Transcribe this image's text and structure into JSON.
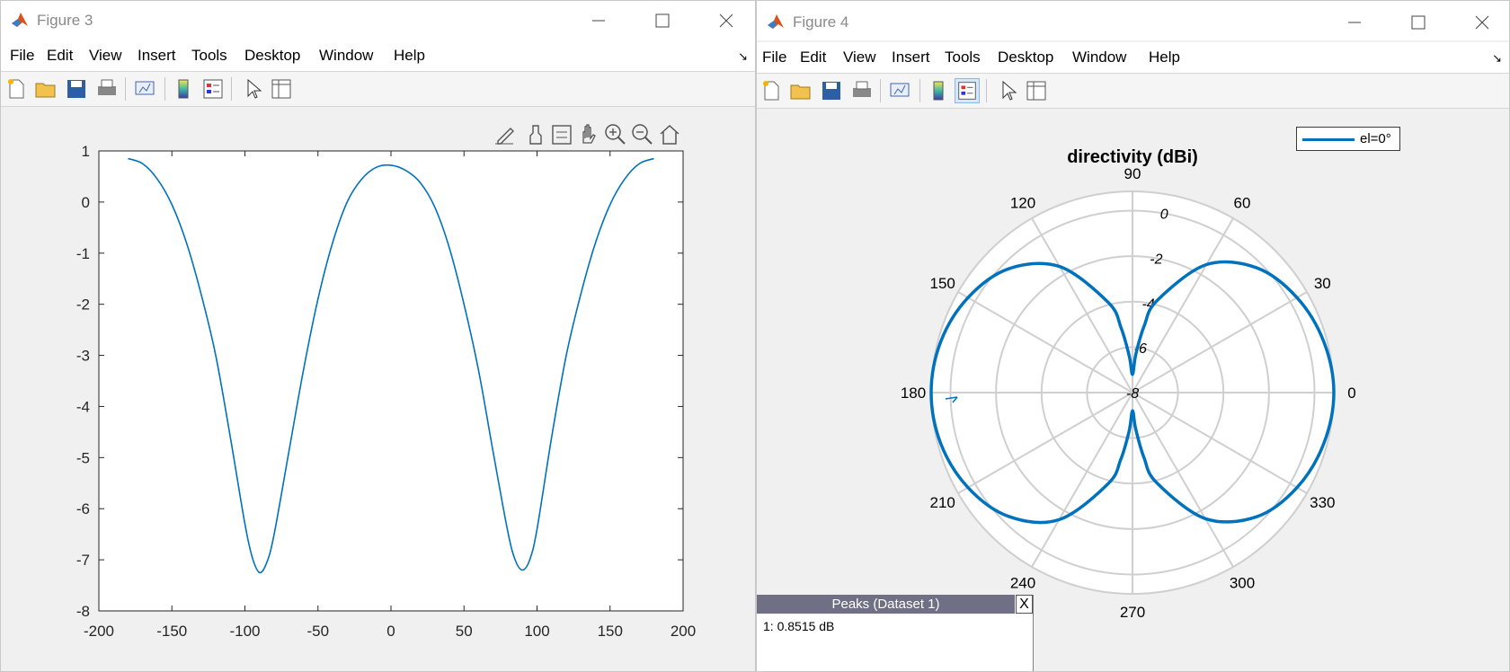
{
  "figure3": {
    "title": "Figure 3",
    "menu": [
      "File",
      "Edit",
      "View",
      "Insert",
      "Tools",
      "Desktop",
      "Window",
      "Help"
    ],
    "axes_toolbar_icons": [
      "edit-brush-icon",
      "brush-icon",
      "datatip-icon",
      "pan-icon",
      "zoom-in-icon",
      "zoom-out-icon",
      "home-icon"
    ],
    "chart_data": {
      "type": "line",
      "xlim": [
        -200,
        200
      ],
      "ylim": [
        -8,
        1
      ],
      "xticks": [
        -200,
        -150,
        -100,
        -50,
        0,
        50,
        100,
        150,
        200
      ],
      "yticks": [
        1,
        0,
        -1,
        -2,
        -3,
        -4,
        -5,
        -6,
        -7,
        -8
      ],
      "series": [
        {
          "color": "#0072bd",
          "x": [
            -180,
            -170,
            -160,
            -150,
            -140,
            -130,
            -120,
            -110,
            -100,
            -95,
            -90,
            -85,
            -80,
            -70,
            -60,
            -50,
            -40,
            -30,
            -20,
            -10,
            0,
            10,
            20,
            30,
            40,
            50,
            60,
            70,
            80,
            85,
            90,
            95,
            100,
            110,
            120,
            130,
            140,
            150,
            160,
            170,
            180
          ],
          "y": [
            0.85,
            0.75,
            0.45,
            -0.05,
            -0.8,
            -1.8,
            -3.0,
            -4.6,
            -6.3,
            -6.95,
            -7.25,
            -7.05,
            -6.5,
            -4.9,
            -3.3,
            -1.9,
            -0.8,
            0.0,
            0.45,
            0.68,
            0.72,
            0.62,
            0.38,
            -0.1,
            -0.9,
            -2.0,
            -3.3,
            -4.9,
            -6.45,
            -7.0,
            -7.2,
            -7.0,
            -6.4,
            -4.6,
            -3.0,
            -1.8,
            -0.8,
            -0.05,
            0.45,
            0.75,
            0.85
          ]
        }
      ]
    }
  },
  "figure4": {
    "title": "Figure 4",
    "menu": [
      "File",
      "Edit",
      "View",
      "Insert",
      "Tools",
      "Desktop",
      "Window",
      "Help"
    ],
    "legend": {
      "label": "el=0°",
      "color": "#0072bd"
    },
    "chart_data": {
      "type": "polar",
      "title": "directivity (dBi)",
      "rlim": [
        -8,
        0.85
      ],
      "rticks": [
        0,
        -2,
        -4,
        -6,
        -8
      ],
      "theta_ticks": [
        0,
        30,
        60,
        90,
        120,
        150,
        180,
        210,
        240,
        270,
        300,
        330
      ],
      "series": [
        {
          "name": "el=0°",
          "color": "#0072bd",
          "theta": [
            0,
            15,
            30,
            45,
            60,
            75,
            80,
            85,
            90,
            95,
            100,
            105,
            120,
            135,
            150,
            165,
            180,
            195,
            210,
            225,
            240,
            255,
            260,
            265,
            270,
            275,
            280,
            285,
            300,
            315,
            330,
            345,
            360
          ],
          "r": [
            0.85,
            0.7,
            0.35,
            -0.25,
            -1.5,
            -3.8,
            -5.0,
            -6.3,
            -7.2,
            -6.4,
            -5.1,
            -3.9,
            -1.6,
            -0.3,
            0.35,
            0.72,
            0.85,
            0.72,
            0.35,
            -0.3,
            -1.55,
            -3.85,
            -5.0,
            -6.3,
            -7.2,
            -6.4,
            -5.1,
            -3.9,
            -1.6,
            -0.28,
            0.35,
            0.7,
            0.85
          ]
        }
      ]
    },
    "peaks": {
      "header": "Peaks (Dataset 1)",
      "close": "X",
      "line1": "1: 0.8515 dB"
    }
  }
}
